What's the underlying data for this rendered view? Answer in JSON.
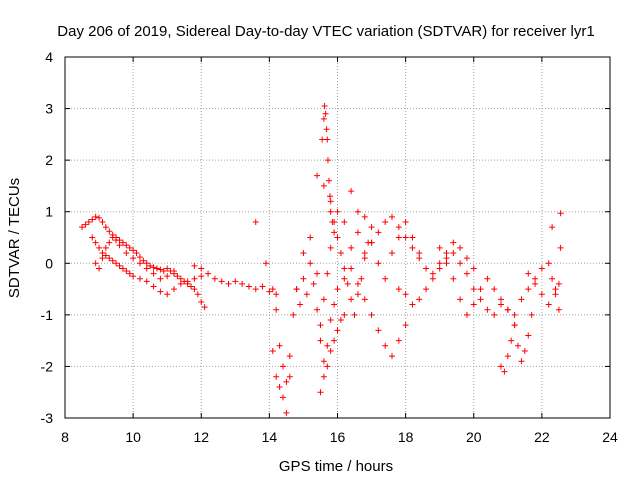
{
  "chart_data": {
    "type": "scatter",
    "title": "Day 206 of 2019, Sidereal Day-to-day VTEC variation (SDTVAR) for receiver lyr1",
    "xlabel": "GPS time / hours",
    "ylabel": "SDTVAR / TECUs",
    "xlim": [
      8,
      24
    ],
    "ylim": [
      -3,
      4
    ],
    "xticks": [
      "8",
      "10",
      "12",
      "14",
      "16",
      "18",
      "20",
      "22",
      "24"
    ],
    "yticks": [
      "-3",
      "-2",
      "-1",
      "0",
      "1",
      "2",
      "3",
      "4"
    ],
    "grid": true,
    "marker": "+",
    "color": "#ff0000",
    "series": [
      {
        "name": "SDTVAR",
        "x": [
          8.5,
          8.6,
          8.7,
          8.8,
          8.9,
          9.0,
          9.1,
          9.2,
          9.3,
          9.4,
          9.5,
          9.6,
          9.7,
          9.8,
          9.9,
          10.0,
          10.1,
          10.2,
          10.3,
          10.4,
          10.5,
          10.6,
          10.7,
          10.8,
          10.9,
          11.0,
          11.1,
          11.2,
          11.3,
          11.4,
          11.5,
          11.6,
          11.7,
          11.8,
          11.9,
          12.0,
          12.1,
          8.8,
          8.9,
          9.0,
          9.1,
          9.2,
          9.3,
          9.4,
          9.5,
          9.6,
          9.7,
          9.8,
          9.9,
          10.0,
          10.2,
          10.4,
          10.6,
          10.8,
          11.0,
          11.2,
          11.4,
          11.6,
          11.8,
          12.0,
          8.9,
          9.0,
          9.1,
          9.2,
          9.3,
          9.4,
          9.5,
          9.6,
          9.8,
          10.0,
          10.2,
          10.4,
          10.6,
          10.8,
          11.0,
          11.2,
          11.8,
          12.0,
          12.2,
          12.4,
          12.6,
          12.8,
          13.0,
          13.2,
          13.4,
          13.6,
          13.8,
          14.0,
          14.2,
          13.6,
          13.9,
          14.1,
          14.2,
          14.3,
          14.4,
          14.5,
          14.6,
          14.7,
          14.8,
          14.1,
          14.2,
          14.3,
          14.4,
          14.5,
          14.6,
          14.8,
          14.9,
          15.0,
          15.1,
          15.2,
          15.3,
          15.4,
          15.5,
          15.6,
          15.7,
          15.8,
          15.9,
          16.0,
          16.1,
          16.2,
          16.3,
          16.4,
          16.5,
          16.6,
          16.7,
          16.8,
          16.9,
          17.0,
          15.0,
          15.2,
          15.4,
          15.5,
          15.6,
          15.7,
          15.8,
          15.9,
          16.0,
          16.2,
          16.4,
          16.6,
          16.8,
          17.0,
          17.2,
          17.4,
          17.6,
          17.8,
          18.0,
          15.55,
          15.6,
          15.62,
          15.65,
          15.68,
          15.7,
          15.72,
          15.75,
          15.78,
          15.8,
          15.85,
          15.9,
          15.5,
          15.6,
          15.7,
          15.8,
          15.9,
          16.0,
          16.1,
          16.2,
          15.4,
          15.6,
          15.8,
          16.0,
          16.2,
          16.4,
          16.6,
          16.4,
          16.6,
          16.8,
          17.0,
          17.2,
          17.4,
          17.6,
          17.8,
          18.0,
          18.2,
          18.4,
          16.8,
          17.0,
          17.2,
          17.4,
          17.6,
          17.8,
          18.0,
          18.2,
          18.4,
          18.6,
          18.8,
          19.0,
          19.2,
          19.4,
          19.6,
          19.8,
          20.0,
          17.8,
          18.0,
          18.2,
          18.4,
          18.6,
          18.8,
          19.0,
          19.2,
          19.4,
          19.6,
          19.8,
          20.0,
          20.2,
          20.4,
          20.6,
          20.8,
          21.0,
          21.2,
          19.0,
          19.2,
          19.4,
          19.6,
          19.8,
          20.0,
          20.2,
          20.4,
          20.6,
          20.8,
          21.0,
          20.8,
          20.9,
          21.0,
          21.1,
          21.2,
          21.3,
          21.4,
          21.5,
          21.6,
          21.7,
          21.2,
          21.4,
          21.6,
          21.8,
          22.0,
          22.2,
          22.3,
          22.4,
          22.5,
          22.55,
          21.6,
          21.8,
          22.0,
          22.2,
          22.4,
          22.5,
          22.3,
          22.55
        ],
        "y": [
          0.7,
          0.75,
          0.8,
          0.85,
          0.9,
          0.88,
          0.8,
          0.7,
          0.62,
          0.55,
          0.5,
          0.45,
          0.4,
          0.35,
          0.3,
          0.25,
          0.2,
          0.12,
          0.05,
          0.0,
          -0.05,
          -0.08,
          -0.1,
          -0.12,
          -0.15,
          -0.1,
          -0.15,
          -0.2,
          -0.25,
          -0.3,
          -0.35,
          -0.4,
          -0.45,
          -0.5,
          -0.6,
          -0.75,
          -0.85,
          0.5,
          0.4,
          0.3,
          0.2,
          0.15,
          0.1,
          0.05,
          0.0,
          -0.05,
          -0.1,
          -0.15,
          -0.2,
          -0.25,
          -0.3,
          -0.35,
          -0.45,
          -0.55,
          -0.6,
          -0.5,
          -0.4,
          -0.35,
          -0.3,
          -0.25,
          0.0,
          -0.1,
          0.1,
          0.3,
          0.4,
          0.5,
          0.45,
          0.35,
          0.2,
          0.1,
          0.0,
          -0.1,
          -0.2,
          -0.3,
          -0.25,
          -0.15,
          -0.05,
          -0.1,
          -0.2,
          -0.3,
          -0.35,
          -0.4,
          -0.35,
          -0.4,
          -0.45,
          -0.5,
          -0.45,
          -0.55,
          -0.6,
          0.8,
          0.0,
          -0.5,
          -0.9,
          -1.6,
          -2.0,
          -2.3,
          -1.8,
          -1.0,
          -0.5,
          -1.7,
          -2.2,
          -2.4,
          -2.6,
          -2.9,
          -2.2,
          -0.5,
          -0.8,
          -0.3,
          -0.6,
          0.0,
          -0.4,
          -0.9,
          -1.2,
          -0.7,
          -0.2,
          0.3,
          0.8,
          0.5,
          0.2,
          -0.1,
          -0.4,
          -0.7,
          -1.0,
          -0.6,
          -0.3,
          0.1,
          0.4,
          0.7,
          0.2,
          0.5,
          -0.2,
          -1.5,
          -1.9,
          -1.6,
          -1.1,
          -0.8,
          -0.5,
          -0.3,
          -0.1,
          -0.4,
          -0.7,
          -1.0,
          -1.3,
          -1.6,
          -1.8,
          -1.5,
          -1.2,
          2.4,
          2.8,
          3.05,
          2.9,
          2.6,
          2.4,
          2.0,
          1.6,
          1.3,
          1.0,
          0.8,
          0.6,
          -2.5,
          -2.2,
          -2.0,
          -1.7,
          -1.5,
          -1.3,
          -1.1,
          -1.0,
          1.7,
          1.5,
          1.2,
          1.0,
          0.8,
          1.4,
          1.0,
          0.3,
          0.6,
          0.9,
          0.4,
          0.0,
          -0.3,
          0.2,
          0.5,
          0.8,
          0.5,
          0.2,
          0.2,
          0.4,
          0.6,
          0.8,
          0.9,
          0.7,
          0.5,
          0.3,
          0.1,
          -0.1,
          -0.2,
          0.0,
          0.2,
          0.4,
          0.3,
          0.1,
          -0.1,
          -0.5,
          -0.6,
          -0.8,
          -0.7,
          -0.5,
          -0.3,
          -0.1,
          0.1,
          0.2,
          0.0,
          -0.2,
          -0.5,
          -0.7,
          -0.9,
          -1.0,
          -0.8,
          -0.9,
          -1.2,
          0.3,
          0.0,
          -0.3,
          -0.7,
          -1.0,
          -0.8,
          -0.5,
          -0.3,
          -0.5,
          -0.7,
          -0.9,
          -2.0,
          -2.1,
          -1.8,
          -1.5,
          -1.2,
          -1.6,
          -1.9,
          -1.7,
          -1.4,
          -1.0,
          -1.0,
          -0.7,
          -0.5,
          -0.3,
          -0.1,
          0.0,
          -0.3,
          -0.6,
          -0.4,
          0.97,
          -0.2,
          -0.4,
          -0.6,
          -0.8,
          -0.5,
          -0.9,
          0.7,
          0.3
        ]
      }
    ]
  }
}
